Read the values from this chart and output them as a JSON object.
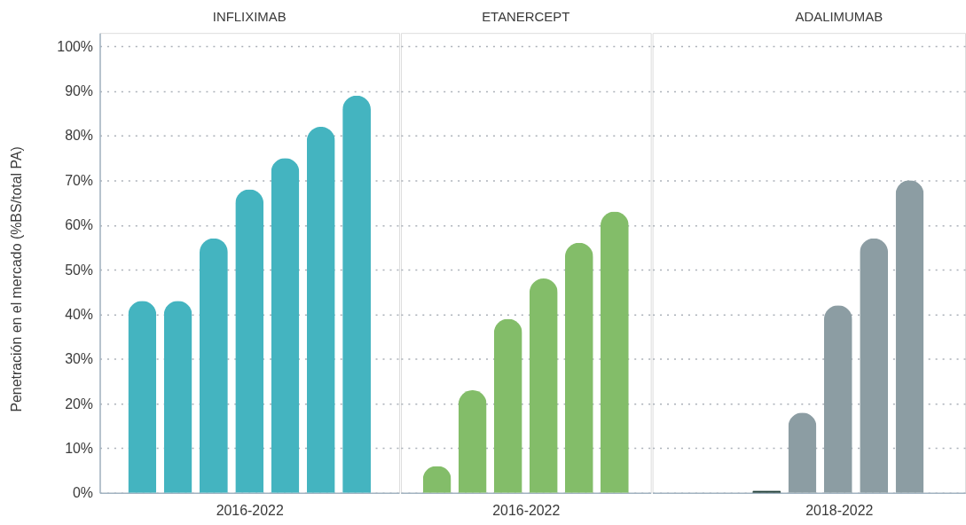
{
  "chart_data": [
    {
      "type": "bar",
      "title": "INFLIXIMAB",
      "xlabel": "2016-2022",
      "ylabel": "Penetración en el mercado (%BS/total PA)",
      "categories": [
        null,
        null,
        null,
        null,
        null,
        null,
        null
      ],
      "values": [
        43,
        43,
        57,
        68,
        75,
        82,
        89
      ],
      "color": "#44b4c0",
      "ylim": [
        0,
        103
      ],
      "yticks": [
        {
          "value": 0,
          "label": "0%"
        },
        {
          "value": 10,
          "label": "10%"
        },
        {
          "value": 20,
          "label": "20%"
        },
        {
          "value": 30,
          "label": "30%"
        },
        {
          "value": 40,
          "label": "40%"
        },
        {
          "value": 50,
          "label": "50%"
        },
        {
          "value": 60,
          "label": "60%"
        },
        {
          "value": 70,
          "label": "70%"
        },
        {
          "value": 80,
          "label": "80%"
        },
        {
          "value": 90,
          "label": "90%"
        },
        {
          "value": 100,
          "label": "100%"
        }
      ],
      "grid": "y",
      "tick_labels": "y"
    },
    {
      "type": "bar",
      "title": "ETANERCEPT",
      "xlabel": "2016-2022",
      "categories": [
        null,
        null,
        null,
        null,
        null,
        null
      ],
      "values": [
        6,
        23,
        39,
        48,
        56,
        63
      ],
      "color": "#83bd69",
      "ylim": [
        0,
        103
      ],
      "yticks": [
        0,
        10,
        20,
        30,
        40,
        50,
        60,
        70,
        80,
        90,
        100
      ],
      "grid": "y",
      "tick_labels": false
    },
    {
      "type": "bar",
      "title": "ADALIMUMAB",
      "xlabel": "2018-2022",
      "categories": [
        null,
        null,
        null,
        null,
        null
      ],
      "values": [
        0.5,
        18,
        42,
        57,
        70
      ],
      "colors": [
        "#1e3d36",
        "#8c9da3",
        "#8c9da3",
        "#8c9da3",
        "#8c9da3"
      ],
      "ylim": [
        0,
        103
      ],
      "yticks": [
        0,
        10,
        20,
        30,
        40,
        50,
        60,
        70,
        80,
        90,
        100
      ],
      "grid": "y",
      "tick_labels": false
    }
  ]
}
